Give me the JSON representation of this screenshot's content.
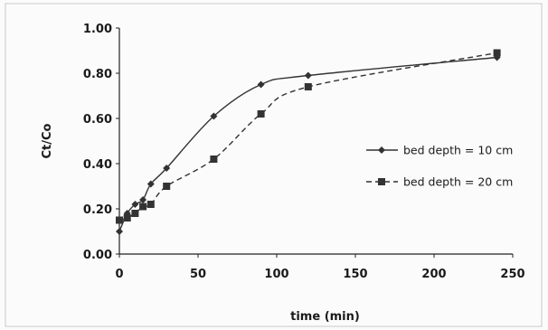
{
  "chart_data": {
    "type": "line",
    "xlabel": "time (min)",
    "ylabel": "Ct/Co",
    "xlim": [
      0,
      250
    ],
    "ylim": [
      0,
      1.0
    ],
    "x_ticks": [
      "0",
      "50",
      "100",
      "150",
      "200",
      "250"
    ],
    "y_ticks": [
      "0.00",
      "0.20",
      "0.40",
      "0.60",
      "0.80",
      "1.00"
    ],
    "grid": false,
    "legend_position": "right",
    "series": [
      {
        "name": "bed depth = 10 cm",
        "marker": "diamond",
        "line_style": "solid",
        "color": "#333333",
        "x": [
          0,
          5,
          10,
          15,
          20,
          30,
          60,
          90,
          120,
          240
        ],
        "y": [
          0.1,
          0.18,
          0.22,
          0.24,
          0.31,
          0.38,
          0.61,
          0.75,
          0.79,
          0.87
        ]
      },
      {
        "name": "bed depth = 20 cm",
        "marker": "square",
        "line_style": "dashed",
        "color": "#333333",
        "x": [
          0,
          5,
          10,
          15,
          20,
          30,
          60,
          90,
          120,
          240
        ],
        "y": [
          0.15,
          0.16,
          0.18,
          0.21,
          0.22,
          0.3,
          0.42,
          0.62,
          0.74,
          0.89
        ]
      }
    ]
  }
}
